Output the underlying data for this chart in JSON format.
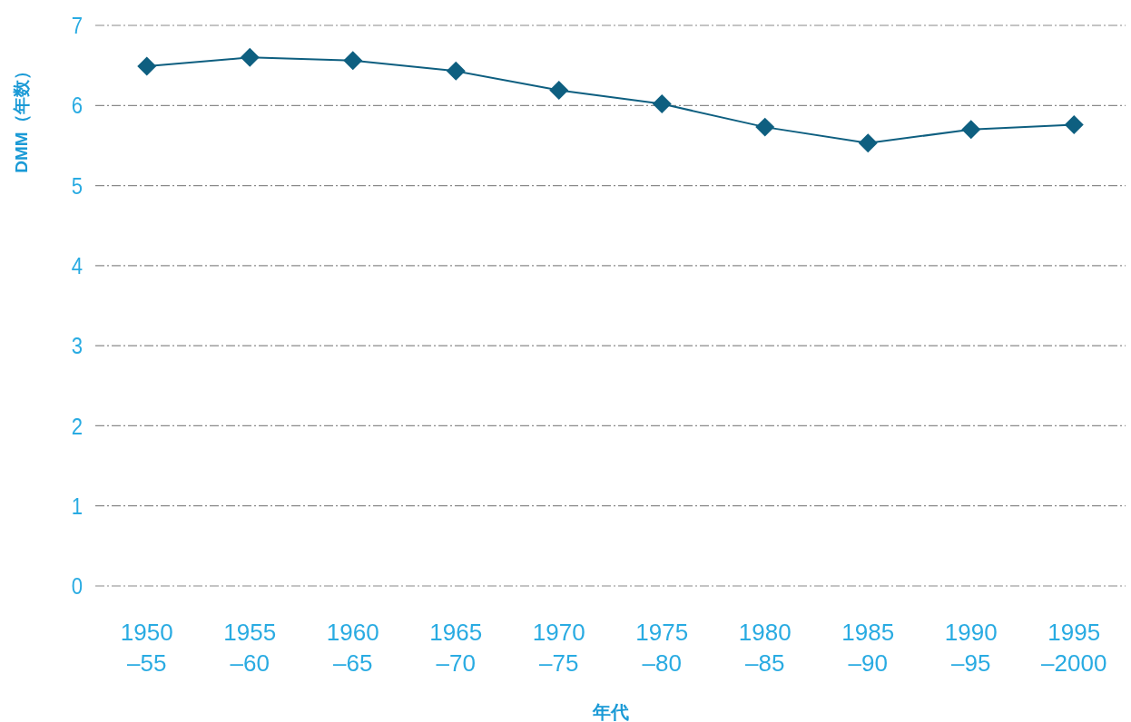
{
  "chart_data": {
    "type": "line",
    "xlabel": "年代",
    "ylabel": "DMM（年数）",
    "categories": [
      "1950\n–55",
      "1955\n–60",
      "1960\n–65",
      "1965\n–70",
      "1970\n–75",
      "1975\n–80",
      "1980\n–85",
      "1985\n–90",
      "1990\n–95",
      "1995\n–2000"
    ],
    "series": [
      {
        "color": "#0e5f80",
        "values": [
          6.49,
          6.6,
          6.56,
          6.43,
          6.19,
          6.02,
          5.73,
          5.53,
          5.7,
          5.76
        ]
      }
    ],
    "ylim": [
      0,
      7
    ],
    "yticks": [
      0,
      1,
      2,
      3,
      4,
      5,
      6,
      7
    ],
    "grid": "y",
    "marker": "diamond",
    "line_style": "solid"
  }
}
